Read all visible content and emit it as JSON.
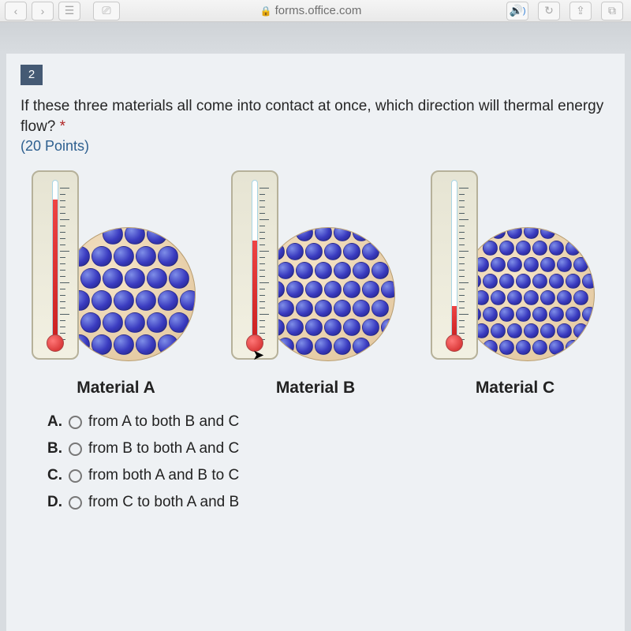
{
  "browser": {
    "url": "forms.office.com",
    "nav_back": "‹",
    "nav_fwd": "›",
    "sidebar_icon": "☰",
    "shield_icon": "⎚",
    "reader_icon": "≣",
    "audio_icon": "🔊",
    "refresh_icon": "↻",
    "share_icon": "⇪",
    "tabs_icon": "⧉"
  },
  "question": {
    "number": "2",
    "text": "If these three materials all come into contact at once, which direction will thermal energy flow?",
    "required_marker": "*",
    "points": "(20 Points)"
  },
  "materials": [
    {
      "label": "Material A",
      "mercury_pct": 88,
      "particle_size": 26,
      "particle_cols": 6,
      "particle_rows": 6,
      "particle_gap": 28
    },
    {
      "label": "Material B",
      "mercury_pct": 62,
      "particle_size": 22,
      "particle_cols": 7,
      "particle_rows": 7,
      "particle_gap": 24
    },
    {
      "label": "Material C",
      "mercury_pct": 20,
      "particle_size": 19,
      "particle_cols": 8,
      "particle_rows": 8,
      "particle_gap": 21
    }
  ],
  "options": [
    {
      "letter": "A.",
      "text": "from A to both B and C"
    },
    {
      "letter": "B.",
      "text": "from B to both A and C"
    },
    {
      "letter": "C.",
      "text": "from both A and B to C"
    },
    {
      "letter": "D.",
      "text": "from C to both A and B"
    }
  ],
  "colors": {
    "page_bg": "#eef1f4",
    "qnum_bg": "#455a74",
    "points_color": "#2d5f8f",
    "particle_fill": "#3a3bc0",
    "disc_bg": "#e0c398",
    "mercury": "#c22"
  }
}
